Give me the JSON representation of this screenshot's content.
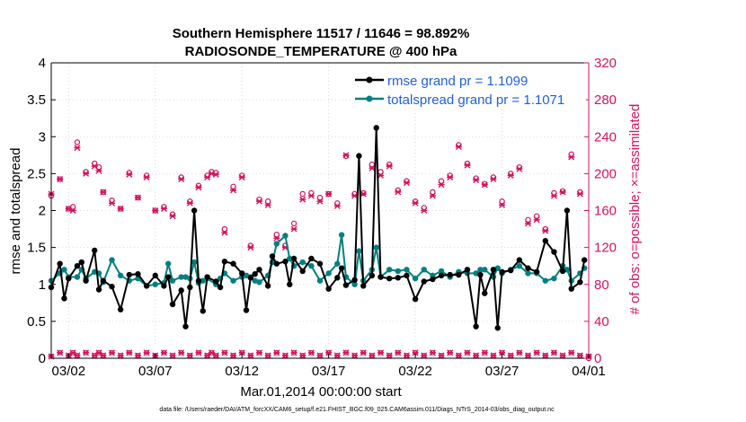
{
  "chart_data": {
    "type": "line",
    "title": "Southern Hemisphere 11517 / 11646 = 98.892%",
    "subtitle": "RADIOSONDE_TEMPERATURE @ 400 hPa",
    "xlabel": "Mar.01,2014 00:00:00 start",
    "ylabel": "rmse and totalspread",
    "y2label": "# of obs: o=possible; ×=assimilated",
    "footnote": "data file: /Users/raeder/DAI/ATM_forcXX/CAM6_setup/f.e21.FHIST_BGC.f09_025.CAM6assim.011/Diags_NTrS_2014-03/obs_diag_output.nc",
    "xlim": [
      1,
      32
    ],
    "ylim": [
      0,
      4
    ],
    "y2lim": [
      0,
      320
    ],
    "xticks": [
      2,
      7,
      12,
      17,
      22,
      27,
      32
    ],
    "xtick_labels": [
      "03/02",
      "03/07",
      "03/12",
      "03/17",
      "03/22",
      "03/27",
      "04/01"
    ],
    "yticks": [
      0,
      0.5,
      1,
      1.5,
      2,
      2.5,
      3,
      3.5,
      4
    ],
    "ytick_labels": [
      "0",
      "0.5",
      "1",
      "1.5",
      "2",
      "2.5",
      "3",
      "3.5",
      "4"
    ],
    "y2ticks": [
      0,
      40,
      80,
      120,
      160,
      200,
      240,
      280,
      320
    ],
    "y2tick_labels": [
      "0",
      "40",
      "80",
      "120",
      "160",
      "200",
      "240",
      "280",
      "320"
    ],
    "legend_position": "top-right",
    "colors": {
      "rmse": "#000000",
      "spread": "#008080",
      "obs": "#d6125e",
      "y2axis": "#d6125e"
    },
    "series": [
      {
        "name": "rmse grand pr = 1.1099",
        "key": "rmse",
        "x": [
          1.0,
          1.5,
          1.75,
          2.0,
          2.5,
          2.75,
          3.0,
          3.5,
          3.75,
          4.0,
          4.5,
          5.0,
          5.5,
          6.0,
          6.5,
          7.0,
          7.5,
          7.75,
          8.0,
          8.5,
          8.75,
          9.0,
          9.25,
          9.5,
          9.75,
          10.0,
          10.5,
          10.75,
          11.0,
          11.5,
          12.0,
          12.25,
          12.5,
          12.75,
          13.0,
          13.5,
          13.75,
          14.0,
          14.5,
          14.75,
          15.0,
          15.5,
          16.0,
          16.5,
          17.0,
          17.5,
          17.75,
          18.0,
          18.5,
          18.75,
          19.0,
          19.5,
          19.75,
          20.0,
          20.5,
          21.0,
          21.5,
          22.0,
          22.5,
          23.0,
          23.5,
          24.0,
          24.5,
          25.0,
          25.5,
          25.75,
          26.0,
          26.5,
          26.75,
          27.0,
          27.5,
          28.0,
          28.5,
          29.0,
          29.5,
          30.0,
          30.5,
          30.75,
          31.0,
          31.5,
          31.75
        ],
        "values": [
          0.96,
          1.28,
          0.81,
          1.08,
          1.25,
          1.3,
          1.05,
          1.46,
          0.93,
          1.05,
          0.97,
          0.66,
          1.13,
          1.14,
          0.98,
          1.12,
          0.98,
          1.1,
          0.73,
          0.92,
          0.43,
          0.96,
          2.0,
          1.05,
          0.64,
          1.1,
          1.04,
          0.96,
          1.31,
          1.28,
          1.15,
          0.65,
          1.09,
          1.14,
          1.2,
          0.98,
          1.38,
          1.28,
          1.31,
          1.0,
          1.35,
          1.18,
          1.35,
          1.28,
          0.94,
          1.09,
          1.22,
          0.99,
          1.06,
          2.74,
          0.98,
          1.12,
          3.12,
          1.1,
          1.08,
          1.09,
          1.12,
          0.8,
          1.04,
          1.07,
          1.12,
          1.13,
          1.13,
          1.2,
          0.43,
          1.13,
          0.88,
          1.2,
          0.41,
          1.17,
          1.19,
          1.33,
          1.22,
          1.17,
          1.59,
          1.44,
          1.18,
          2.0,
          0.94,
          1.03,
          1.33
        ]
      },
      {
        "name": "totalspread grand pr = 1.1071",
        "key": "spread",
        "x": [
          1.0,
          1.5,
          1.75,
          2.0,
          2.5,
          2.75,
          3.0,
          3.5,
          3.75,
          4.0,
          4.5,
          5.0,
          5.5,
          6.0,
          6.5,
          7.0,
          7.5,
          7.75,
          8.0,
          8.5,
          8.75,
          9.0,
          9.25,
          9.5,
          9.75,
          10.0,
          10.5,
          10.75,
          11.0,
          11.5,
          12.0,
          12.25,
          12.5,
          12.75,
          13.0,
          13.5,
          13.75,
          14.0,
          14.5,
          14.75,
          15.0,
          15.5,
          16.0,
          16.5,
          17.0,
          17.5,
          17.75,
          18.0,
          18.5,
          18.75,
          19.0,
          19.5,
          19.75,
          20.0,
          20.5,
          21.0,
          21.5,
          22.0,
          22.5,
          23.0,
          23.5,
          24.0,
          24.5,
          25.0,
          25.5,
          25.75,
          26.0,
          26.5,
          26.75,
          27.0,
          27.5,
          28.0,
          28.5,
          29.0,
          29.5,
          30.0,
          30.5,
          30.75,
          31.0,
          31.5,
          31.75
        ],
        "values": [
          1.05,
          1.15,
          1.2,
          1.1,
          1.1,
          1.2,
          1.08,
          1.17,
          1.15,
          1.03,
          1.33,
          1.12,
          1.05,
          1.08,
          0.98,
          1.0,
          1.02,
          1.28,
          1.05,
          1.1,
          1.1,
          1.08,
          1.3,
          1.02,
          1.05,
          1.08,
          1.0,
          1.08,
          1.15,
          1.05,
          1.1,
          1.12,
          1.1,
          1.05,
          1.03,
          1.12,
          1.3,
          1.55,
          1.66,
          1.35,
          1.25,
          1.3,
          1.25,
          1.05,
          1.15,
          1.28,
          1.67,
          1.1,
          1.0,
          1.45,
          1.05,
          1.2,
          1.5,
          1.1,
          1.2,
          1.18,
          1.2,
          1.08,
          1.2,
          1.12,
          1.18,
          1.1,
          1.17,
          1.15,
          1.15,
          1.2,
          1.2,
          1.1,
          1.22,
          1.15,
          1.2,
          1.25,
          1.15,
          1.15,
          1.05,
          1.08,
          1.25,
          1.2,
          1.05,
          1.15,
          1.22
        ]
      },
      {
        "name": "possible",
        "key": "possible",
        "x": [
          1.0,
          1.5,
          2.0,
          2.25,
          2.5,
          3.0,
          3.5,
          3.75,
          4.0,
          4.5,
          5.0,
          5.5,
          6.0,
          6.5,
          7.0,
          7.5,
          8.0,
          8.5,
          9.0,
          9.5,
          10.0,
          10.25,
          10.5,
          11.0,
          11.5,
          12.0,
          12.5,
          13.0,
          13.5,
          14.0,
          14.5,
          15.0,
          15.5,
          16.0,
          16.5,
          17.0,
          17.5,
          18.0,
          18.5,
          19.0,
          19.5,
          20.0,
          20.5,
          21.0,
          21.5,
          22.0,
          22.5,
          23.0,
          23.5,
          24.0,
          24.5,
          25.0,
          25.5,
          26.0,
          26.5,
          27.0,
          27.5,
          28.0,
          28.5,
          29.0,
          29.5,
          30.0,
          30.5,
          31.0,
          31.5,
          32.0
        ],
        "values": [
          176,
          194,
          162,
          164,
          234,
          202,
          211,
          207,
          180,
          171,
          162,
          201,
          174,
          198,
          160,
          164,
          156,
          196,
          170,
          187,
          198,
          202,
          201,
          140,
          186,
          198,
          122,
          172,
          170,
          134,
          122,
          146,
          178,
          179,
          174,
          178,
          168,
          219,
          178,
          179,
          210,
          202,
          210,
          182,
          192,
          170,
          163,
          180,
          192,
          198,
          231,
          211,
          195,
          189,
          196,
          170,
          200,
          207,
          150,
          154,
          140,
          179,
          181,
          221,
          180,
          0
        ],
        "labels": [
          "03/02",
          "03/07",
          "03/12",
          "03/17",
          "03/22",
          "03/27",
          "04/01"
        ]
      },
      {
        "name": "assimilated",
        "key": "assimilated",
        "x": [
          1.0,
          1.5,
          2.0,
          2.25,
          2.5,
          3.0,
          3.5,
          3.75,
          4.0,
          4.5,
          5.0,
          5.5,
          6.0,
          6.5,
          7.0,
          7.5,
          8.0,
          8.5,
          9.0,
          9.5,
          10.0,
          10.25,
          10.5,
          11.0,
          11.5,
          12.0,
          12.5,
          13.0,
          13.5,
          14.0,
          14.5,
          15.0,
          15.5,
          16.0,
          16.5,
          17.0,
          17.5,
          18.0,
          18.5,
          19.0,
          19.5,
          20.0,
          20.5,
          21.0,
          21.5,
          22.0,
          22.5,
          23.0,
          23.5,
          24.0,
          24.5,
          25.0,
          25.5,
          26.0,
          26.5,
          27.0,
          27.5,
          28.0,
          28.5,
          29.0,
          29.5,
          30.0,
          30.5,
          31.0,
          31.5,
          32.0
        ],
        "values": [
          178,
          194,
          162,
          160,
          228,
          200,
          208,
          203,
          180,
          168,
          162,
          199,
          174,
          196,
          160,
          162,
          154,
          194,
          168,
          185,
          196,
          200,
          199,
          136,
          182,
          196,
          120,
          170,
          166,
          130,
          120,
          140,
          172,
          176,
          170,
          178,
          165,
          220,
          176,
          178,
          206,
          198,
          208,
          180,
          190,
          168,
          160,
          176,
          188,
          196,
          229,
          209,
          193,
          188,
          194,
          166,
          198,
          205,
          146,
          150,
          138,
          176,
          180,
          218,
          178,
          2
        ],
        "low_row": [
          2,
          6,
          3,
          6,
          3,
          6,
          3,
          6,
          3,
          6,
          3,
          6,
          3,
          6,
          3,
          6,
          3,
          6,
          3,
          6,
          3,
          6,
          3,
          6,
          3,
          6,
          3,
          6,
          3,
          6,
          3,
          6,
          3,
          6,
          3,
          6,
          3,
          6,
          3,
          6,
          3,
          6,
          3,
          6,
          3,
          6,
          3,
          6,
          3,
          6,
          3,
          6,
          3,
          6,
          3,
          6,
          3,
          6,
          3,
          6,
          3,
          6,
          3,
          6,
          3,
          2
        ]
      }
    ]
  }
}
